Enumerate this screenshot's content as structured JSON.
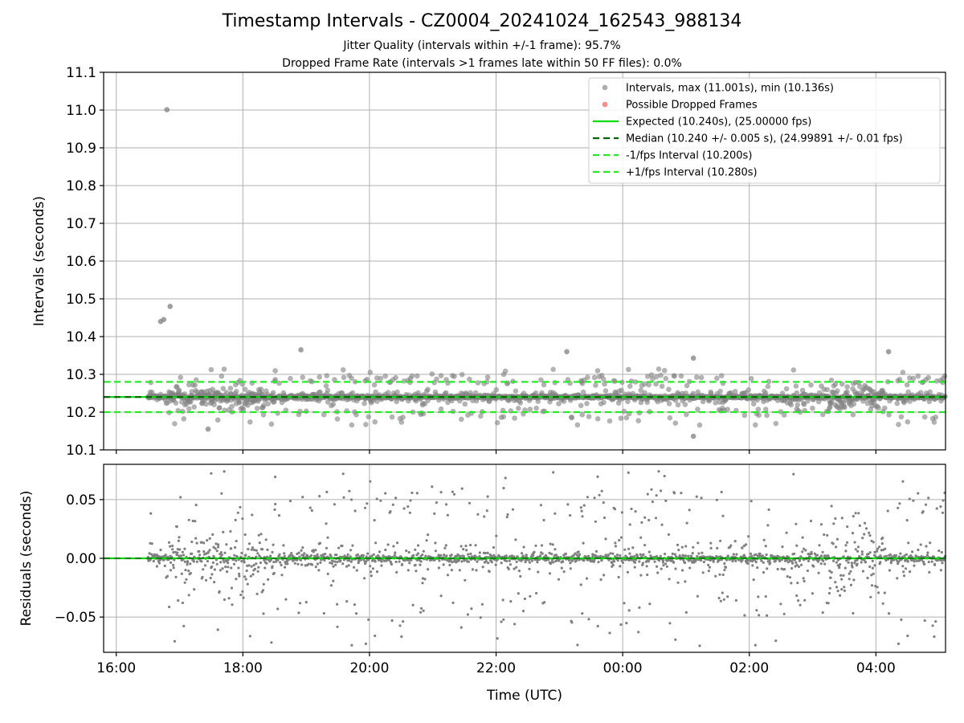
{
  "figure": {
    "title": "Timestamp Intervals - CZ0004_20241024_162543_988134",
    "subtitle_1": "Jitter Quality (intervals within +/-1 frame): 95.7%",
    "subtitle_2": "Dropped Frame Rate (intervals >1 frames late within 50 FF files): 0.0%"
  },
  "colors": {
    "points": "#808080",
    "dropped": "#ff4d4d",
    "expected": "#00dd00",
    "median": "#006400",
    "bounds": "#22ee22",
    "grid": "#b0b0b0"
  },
  "chart_data": [
    {
      "type": "scatter",
      "panel": "intervals",
      "title": "Timestamp Intervals - CZ0004_20241024_162543_988134",
      "xlabel": "",
      "ylabel": "Intervals (seconds)",
      "xlim": [
        "15:48",
        "05:06"
      ],
      "ylim": [
        10.1,
        11.1
      ],
      "x_tick_labels": [
        "16:00",
        "18:00",
        "20:00",
        "22:00",
        "00:00",
        "02:00",
        "04:00"
      ],
      "y_tick_labels": [
        "10.1",
        "10.2",
        "10.3",
        "10.4",
        "10.5",
        "10.6",
        "10.7",
        "10.8",
        "10.9",
        "11.0",
        "11.1"
      ],
      "grid": true,
      "legend_position": "top-right",
      "outliers": [
        {
          "time": "16:48",
          "value": 11.001
        },
        {
          "time": "16:42",
          "value": 10.44
        },
        {
          "time": "16:45",
          "value": 10.445
        },
        {
          "time": "16:51",
          "value": 10.48
        },
        {
          "time": "18:55",
          "value": 10.365
        },
        {
          "time": "23:07",
          "value": 10.36
        },
        {
          "time": "04:12",
          "value": 10.36
        },
        {
          "time": "01:07",
          "value": 10.343
        },
        {
          "time": "01:07",
          "value": 10.136
        },
        {
          "time": "17:27",
          "value": 10.155
        }
      ],
      "series": [
        {
          "name": "Intervals, max (11.001s), min (10.136s)",
          "marker": "point",
          "color": "#808080",
          "note_count": 1900
        },
        {
          "name": "Possible Dropped Frames",
          "marker": "point",
          "color": "#ff4d4d",
          "values": []
        },
        {
          "name": "Expected (10.240s), (25.00000 fps)",
          "marker": "solid-line",
          "color": "#00dd00",
          "value": 10.24
        },
        {
          "name": "Median (10.240 +/- 0.005 s), (24.99891 +/- 0.01 fps)",
          "marker": "dashed-line",
          "color": "#006400",
          "value": 10.24
        },
        {
          "name": "-1/fps Interval (10.200s)",
          "marker": "dashed-line",
          "color": "#22ee22",
          "value": 10.2
        },
        {
          "name": "+1/fps Interval (10.280s)",
          "marker": "dashed-line",
          "color": "#22ee22",
          "value": 10.28
        }
      ]
    },
    {
      "type": "scatter",
      "panel": "residuals",
      "xlabel": "Time (UTC)",
      "ylabel": "Residuals (seconds)",
      "xlim": [
        "15:48",
        "05:06"
      ],
      "ylim": [
        -0.08,
        0.08
      ],
      "x_tick_labels": [
        "16:00",
        "18:00",
        "20:00",
        "22:00",
        "00:00",
        "02:00",
        "04:00"
      ],
      "y_tick_labels": [
        "−0.05",
        "0.00",
        "0.05"
      ],
      "grid": true,
      "zero_line_color": "#00dd00"
    }
  ]
}
